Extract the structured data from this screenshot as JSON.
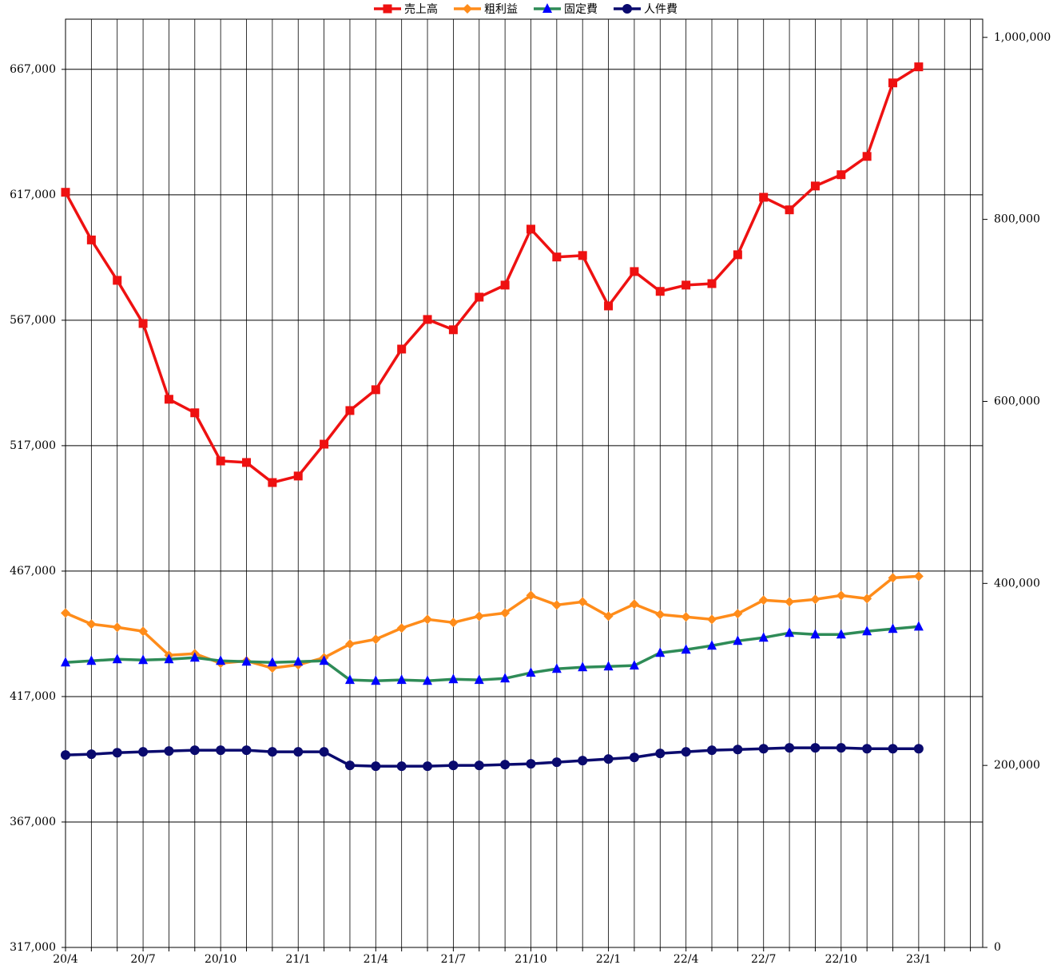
{
  "chart_data": {
    "type": "line",
    "categories": [
      "20/4",
      null,
      null,
      "20/7",
      null,
      null,
      "20/10",
      null,
      null,
      "21/1",
      null,
      null,
      "21/4",
      null,
      null,
      "21/7",
      null,
      null,
      "21/10",
      null,
      null,
      "22/1",
      null,
      null,
      "22/4",
      null,
      null,
      "22/7",
      null,
      null,
      "22/10",
      null,
      null,
      "23/1",
      null,
      null
    ],
    "series": [
      {
        "name": "売上高",
        "color": "#ee1111",
        "marker": "square",
        "axis": "y",
        "values": [
          618000,
          599000,
          582900,
          565700,
          535500,
          530100,
          510900,
          510300,
          502300,
          504900,
          517600,
          531000,
          539300,
          555500,
          567300,
          563200,
          576200,
          581000,
          603300,
          592200,
          592800,
          572700,
          586400,
          578500,
          581000,
          581600,
          593100,
          616000,
          611000,
          620500,
          625000,
          632300,
          661600,
          668000,
          null,
          null
        ]
      },
      {
        "name": "粗利益",
        "color": "#ff8c1a",
        "marker": "diamond",
        "axis": "y2",
        "values": [
          367500,
          355300,
          351800,
          347400,
          321100,
          322800,
          312300,
          314900,
          307000,
          310500,
          318400,
          333300,
          338600,
          350900,
          360500,
          357000,
          364000,
          367500,
          386800,
          376300,
          379800,
          364000,
          377200,
          365800,
          363200,
          360500,
          366700,
          381600,
          379800,
          382500,
          386800,
          383300,
          406100,
          407900,
          null,
          null
        ]
      },
      {
        "name": "固定費",
        "color": "#2e8b57",
        "marker": "triangle",
        "axis": "y2",
        "values": [
          313200,
          314900,
          316700,
          315800,
          316700,
          318400,
          314900,
          314000,
          313200,
          314000,
          314900,
          293900,
          293000,
          293900,
          293000,
          294700,
          293900,
          295600,
          301800,
          306100,
          307900,
          308800,
          309700,
          323700,
          327200,
          331600,
          336800,
          340400,
          345600,
          343900,
          343900,
          347400,
          350000,
          352600,
          null,
          null
        ]
      },
      {
        "name": "人件費",
        "color": "#0a0a6e",
        "marker": "circle",
        "axis": "y2",
        "values": [
          211400,
          212300,
          214000,
          214900,
          215800,
          216700,
          216700,
          216700,
          214900,
          214900,
          214900,
          200000,
          199100,
          199100,
          199100,
          200000,
          200000,
          200900,
          201800,
          203500,
          205300,
          207000,
          208800,
          213200,
          214900,
          216700,
          217500,
          218400,
          219300,
          219300,
          219300,
          218400,
          218400,
          218400,
          null,
          null
        ]
      }
    ],
    "ylim": [
      317000,
      687000
    ],
    "yticks": [
      {
        "value": 317000,
        "label": "317,000"
      },
      {
        "value": 367000,
        "label": "367,000"
      },
      {
        "value": 417000,
        "label": "417,000"
      },
      {
        "value": 467000,
        "label": "467,000"
      },
      {
        "value": 517000,
        "label": "517,000"
      },
      {
        "value": 567000,
        "label": "567,000"
      },
      {
        "value": 617000,
        "label": "617,000"
      },
      {
        "value": 667000,
        "label": "667,000"
      }
    ],
    "y2lim": [
      0,
      1020000
    ],
    "y2ticks": [
      0,
      {
        "value": 200000,
        "label": "200,000"
      },
      {
        "value": 400000,
        "label": "400,000"
      },
      {
        "value": 600000,
        "label": "600,000"
      },
      {
        "value": 800000,
        "label": "800,000"
      },
      {
        "value": 1000000,
        "label": "1,000,000"
      }
    ],
    "grid": true,
    "legend": "top"
  }
}
